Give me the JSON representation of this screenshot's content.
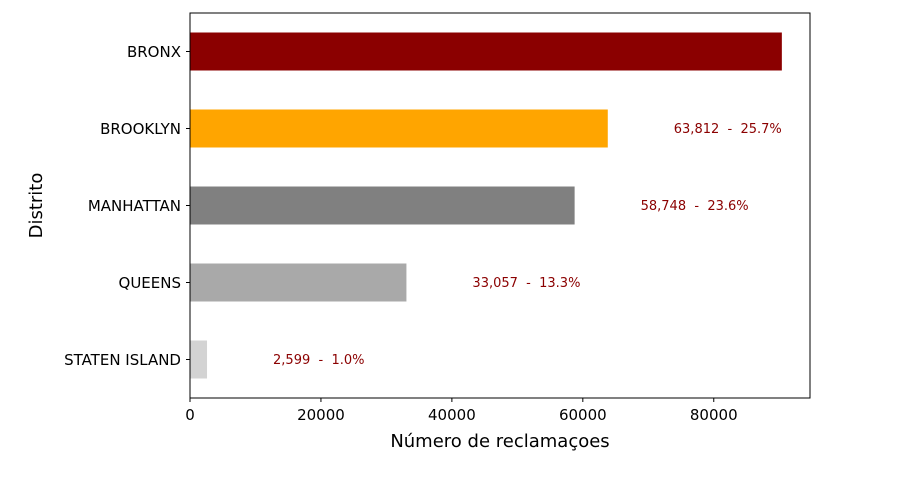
{
  "chart_data": {
    "type": "bar",
    "orientation": "horizontal",
    "categories": [
      "BRONX",
      "BROOKLYN",
      "MANHATTAN",
      "QUEENS",
      "STATEN ISLAND"
    ],
    "values": [
      90400,
      63812,
      58748,
      33057,
      2599
    ],
    "bar_labels": [
      "",
      "63,812  -  25.7%",
      "58,748  -  23.6%",
      "33,057  -  13.3%",
      "2,599  -  1.0%"
    ],
    "colors": [
      "#8b0000",
      "#ffa500",
      "#808080",
      "#a9a9a9",
      "#d3d3d3"
    ],
    "xlabel": "Número de reclamaçoes",
    "ylabel": "Distrito",
    "xlim": [
      0,
      94700
    ],
    "xticks": [
      0,
      20000,
      40000,
      60000,
      80000
    ],
    "xtick_labels": [
      "0",
      "20000",
      "40000",
      "60000",
      "80000"
    ],
    "grid": false,
    "label_color": "#8b0000"
  }
}
